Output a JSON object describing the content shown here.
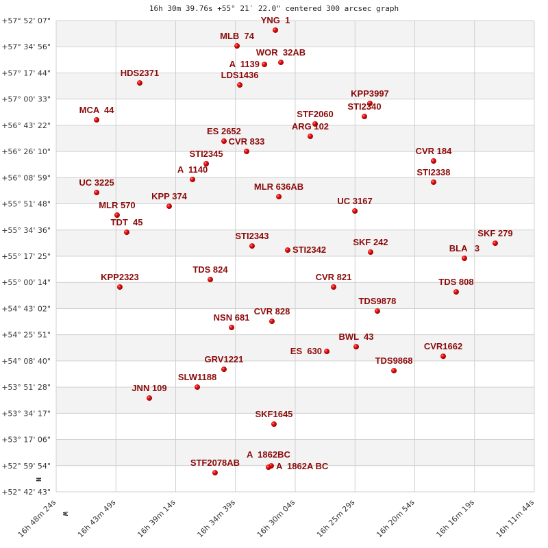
{
  "chart_data": {
    "type": "scatter",
    "title": "16h 30m 39.76s +55° 21′ 22.0\" centered 300 arcsec graph",
    "x_axis": {
      "quantity": "right ascension (hours)",
      "reversed": true,
      "range": [
        16.80667,
        16.19556
      ],
      "tick_labels": [
        "16h 48m 24s",
        "16h 43m 49s",
        "16h 39m 14s",
        "16h 34m 39s",
        "16h 30m 04s",
        "16h 25m 29s",
        "16h 20m 54s",
        "16h 16m 19s",
        "16h 11m 44s"
      ]
    },
    "y_axis": {
      "quantity": "declination (degrees)",
      "range": [
        52.7119,
        57.8686
      ],
      "tick_labels": [
        "+57° 52' 07\"",
        "+57° 34' 56\"",
        "+57° 17' 44\"",
        "+57° 00' 33\"",
        "+56° 43' 22\"",
        "+56° 26' 10\"",
        "+56° 08' 59\"",
        "+55° 51' 48\"",
        "+55° 34' 36\"",
        "+55° 17' 25\"",
        "+55° 00' 14\"",
        "+54° 43' 02\"",
        "+54° 25' 51\"",
        "+54° 08' 40\"",
        "+53° 51' 28\"",
        "+53° 34' 17\"",
        "+53° 17' 06\"",
        "+52° 59' 54\"",
        "+52° 42' 43\""
      ]
    },
    "compass": {
      "north": "N",
      "west": "W"
    },
    "grid": true,
    "banded_rows": true,
    "colors": {
      "point": "#dd0000",
      "label": "#8b0a0a",
      "band": "#f3f3f3",
      "grid": "#d0d0d0"
    },
    "points": [
      {
        "name": "YNG  1",
        "ra": 16.5265,
        "dec": 57.764
      },
      {
        "name": "MLB  74",
        "ra": 16.5755,
        "dec": 57.591
      },
      {
        "name": "A  1139",
        "ra": 16.5405,
        "dec": 57.389
      },
      {
        "name": "WOR  32AB",
        "ra": 16.5195,
        "dec": 57.411
      },
      {
        "name": "HDS2371",
        "ra": 16.6999,
        "dec": 57.186
      },
      {
        "name": "LDS1436",
        "ra": 16.572,
        "dec": 57.164
      },
      {
        "name": "MCA  44",
        "ra": 16.755,
        "dec": 56.782
      },
      {
        "name": "KPP3997",
        "ra": 16.4057,
        "dec": 56.962
      },
      {
        "name": "STI2340",
        "ra": 16.4127,
        "dec": 56.819
      },
      {
        "name": "STF2060",
        "ra": 16.4757,
        "dec": 56.737
      },
      {
        "name": "ARG 102",
        "ra": 16.4819,
        "dec": 56.602
      },
      {
        "name": "ES 2652",
        "ra": 16.5922,
        "dec": 56.549
      },
      {
        "name": "CVR 833",
        "ra": 16.5633,
        "dec": 56.437
      },
      {
        "name": "STI2345",
        "ra": 16.6149,
        "dec": 56.302
      },
      {
        "name": "A  1140",
        "ra": 16.6324,
        "dec": 56.13
      },
      {
        "name": "UC 3225",
        "ra": 16.755,
        "dec": 55.987
      },
      {
        "name": "MLR 636AB",
        "ra": 16.5221,
        "dec": 55.942
      },
      {
        "name": "KPP 374",
        "ra": 16.6622,
        "dec": 55.837
      },
      {
        "name": "MLR 570",
        "ra": 16.7288,
        "dec": 55.74
      },
      {
        "name": "TDT  45",
        "ra": 16.7165,
        "dec": 55.552
      },
      {
        "name": "CVR 184",
        "ra": 16.3243,
        "dec": 56.332
      },
      {
        "name": "STI2338",
        "ra": 16.3243,
        "dec": 56.1
      },
      {
        "name": "UC 3167",
        "ra": 16.4249,
        "dec": 55.785
      },
      {
        "name": "SKF 279",
        "ra": 16.2455,
        "dec": 55.432
      },
      {
        "name": "STI2343",
        "ra": 16.5563,
        "dec": 55.402
      },
      {
        "name": "STI2342",
        "ra": 16.5108,
        "dec": 55.357
      },
      {
        "name": "SKF 242",
        "ra": 16.4048,
        "dec": 55.335
      },
      {
        "name": "BLA   3",
        "ra": 16.2849,
        "dec": 55.267
      },
      {
        "name": "TDS 824",
        "ra": 16.6097,
        "dec": 55.035
      },
      {
        "name": "KPP2323",
        "ra": 16.7253,
        "dec": 54.953
      },
      {
        "name": "CVR 821",
        "ra": 16.4521,
        "dec": 54.953
      },
      {
        "name": "TDS 808",
        "ra": 16.2954,
        "dec": 54.9
      },
      {
        "name": "TDS9878",
        "ra": 16.3961,
        "dec": 54.69
      },
      {
        "name": "CVR 828",
        "ra": 16.5309,
        "dec": 54.578
      },
      {
        "name": "NSN 681",
        "ra": 16.5825,
        "dec": 54.51
      },
      {
        "name": "ES  630",
        "ra": 16.4608,
        "dec": 54.248
      },
      {
        "name": "BWL  43",
        "ra": 16.4232,
        "dec": 54.3
      },
      {
        "name": "CVR1662",
        "ra": 16.312,
        "dec": 54.195
      },
      {
        "name": "TDS9868",
        "ra": 16.375,
        "dec": 54.038
      },
      {
        "name": "GRV1221",
        "ra": 16.5922,
        "dec": 54.053
      },
      {
        "name": "SLW1188",
        "ra": 16.6263,
        "dec": 53.858
      },
      {
        "name": "JNN 109",
        "ra": 16.6876,
        "dec": 53.738
      },
      {
        "name": "SKF1645",
        "ra": 16.5283,
        "dec": 53.453
      },
      {
        "name": "A  1862A BC",
        "ra": 16.5318,
        "dec": 52.996
      },
      {
        "name": "A  1862BC",
        "ra": 16.5353,
        "dec": 52.981
      },
      {
        "name": "STF2078AB",
        "ra": 16.6036,
        "dec": 52.921
      }
    ]
  }
}
